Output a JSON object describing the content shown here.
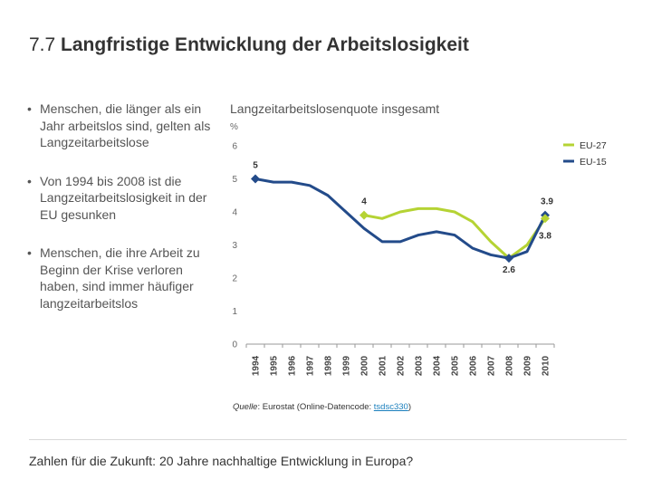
{
  "slide": {
    "title_number": "7.7",
    "title_text": "Langfristige Entwicklung der Arbeitslosigkeit",
    "bullets": [
      "Menschen, die länger als ein Jahr arbeitslos sind, gelten als Langzeitarbeitslose",
      "Von 1994 bis 2008 ist die Langzeitarbeitslosigkeit in der EU gesunken",
      "Menschen, die ihre Arbeit zu Beginn der Krise verloren haben, sind immer häufiger langzeitarbeitslos"
    ],
    "source_prefix": "Quelle",
    "source_text": ": Eurostat (Online-Datencode: ",
    "source_code": "tsdsc330",
    "source_suffix": ")",
    "footer": "Zahlen für die Zukunft: 20 Jahre nachhaltige Entwicklung in Europa?"
  },
  "chart_data": {
    "type": "line",
    "title": "Langzeitarbeitslosenquote insgesamt",
    "ylabel": "%",
    "xlabel": "",
    "ylim": [
      0,
      6
    ],
    "yticks": [
      "0",
      "1",
      "2",
      "3",
      "4",
      "5",
      "6"
    ],
    "categories": [
      "1994",
      "1995",
      "1996",
      "1997",
      "1998",
      "1999",
      "2000",
      "2001",
      "2002",
      "2003",
      "2004",
      "2005",
      "2006",
      "2007",
      "2008",
      "2009",
      "2010"
    ],
    "series": [
      {
        "name": "EU-27",
        "color": "#b5d334",
        "values": [
          null,
          null,
          null,
          null,
          null,
          null,
          3.9,
          3.8,
          4.0,
          4.1,
          4.1,
          4.0,
          3.7,
          3.1,
          2.6,
          3.0,
          3.8
        ]
      },
      {
        "name": "EU-15",
        "color": "#234b8a",
        "values": [
          5.0,
          4.9,
          4.9,
          4.8,
          4.5,
          4.0,
          3.5,
          3.1,
          3.1,
          3.3,
          3.4,
          3.3,
          2.9,
          2.7,
          2.6,
          2.8,
          3.9
        ]
      }
    ],
    "data_labels": [
      {
        "text": "5",
        "series": "EU-15",
        "index": 0
      },
      {
        "text": "4",
        "series": "EU-27",
        "index": 6
      },
      {
        "text": "3.9",
        "series": "EU-15",
        "index": 16
      },
      {
        "text": "3.8",
        "series": "EU-27",
        "index": 16
      },
      {
        "text": "2.6",
        "series": "EU-15",
        "index": 14
      }
    ],
    "legend_position": "top-right",
    "grid": false
  }
}
